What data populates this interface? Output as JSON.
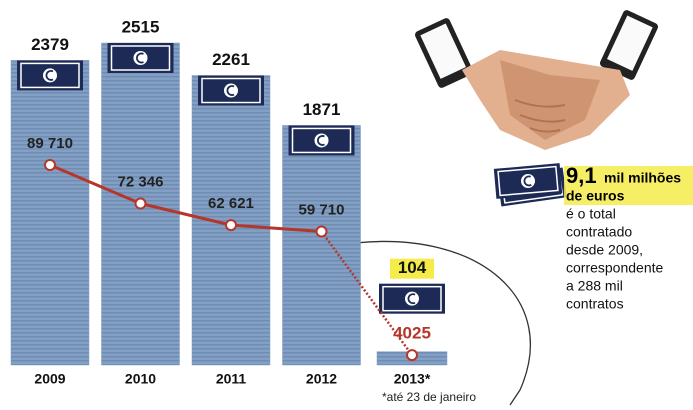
{
  "chart_data": {
    "type": "bar",
    "categories": [
      "2009",
      "2010",
      "2011",
      "2012",
      "2013*"
    ],
    "series": [
      {
        "color": "#7f9cc2",
        "values": [
          2379,
          2515,
          2261,
          1871,
          104
        ]
      },
      {
        "type": "line",
        "color": "#b5362a",
        "values": [
          89710,
          72346,
          62621,
          59710,
          4025
        ],
        "value_labels": [
          "89 710",
          "72 346",
          "62 621",
          "59 710",
          "4025"
        ]
      }
    ],
    "footnote": "*até 23 de janeiro"
  },
  "side_note": {
    "number": "9,1",
    "unit_line1": "mil milhões",
    "unit_line2": "de euros",
    "lines": [
      "é o total",
      "contratado",
      "desde 2009,",
      "correspondente",
      "a 288 mil",
      "contratos"
    ]
  }
}
